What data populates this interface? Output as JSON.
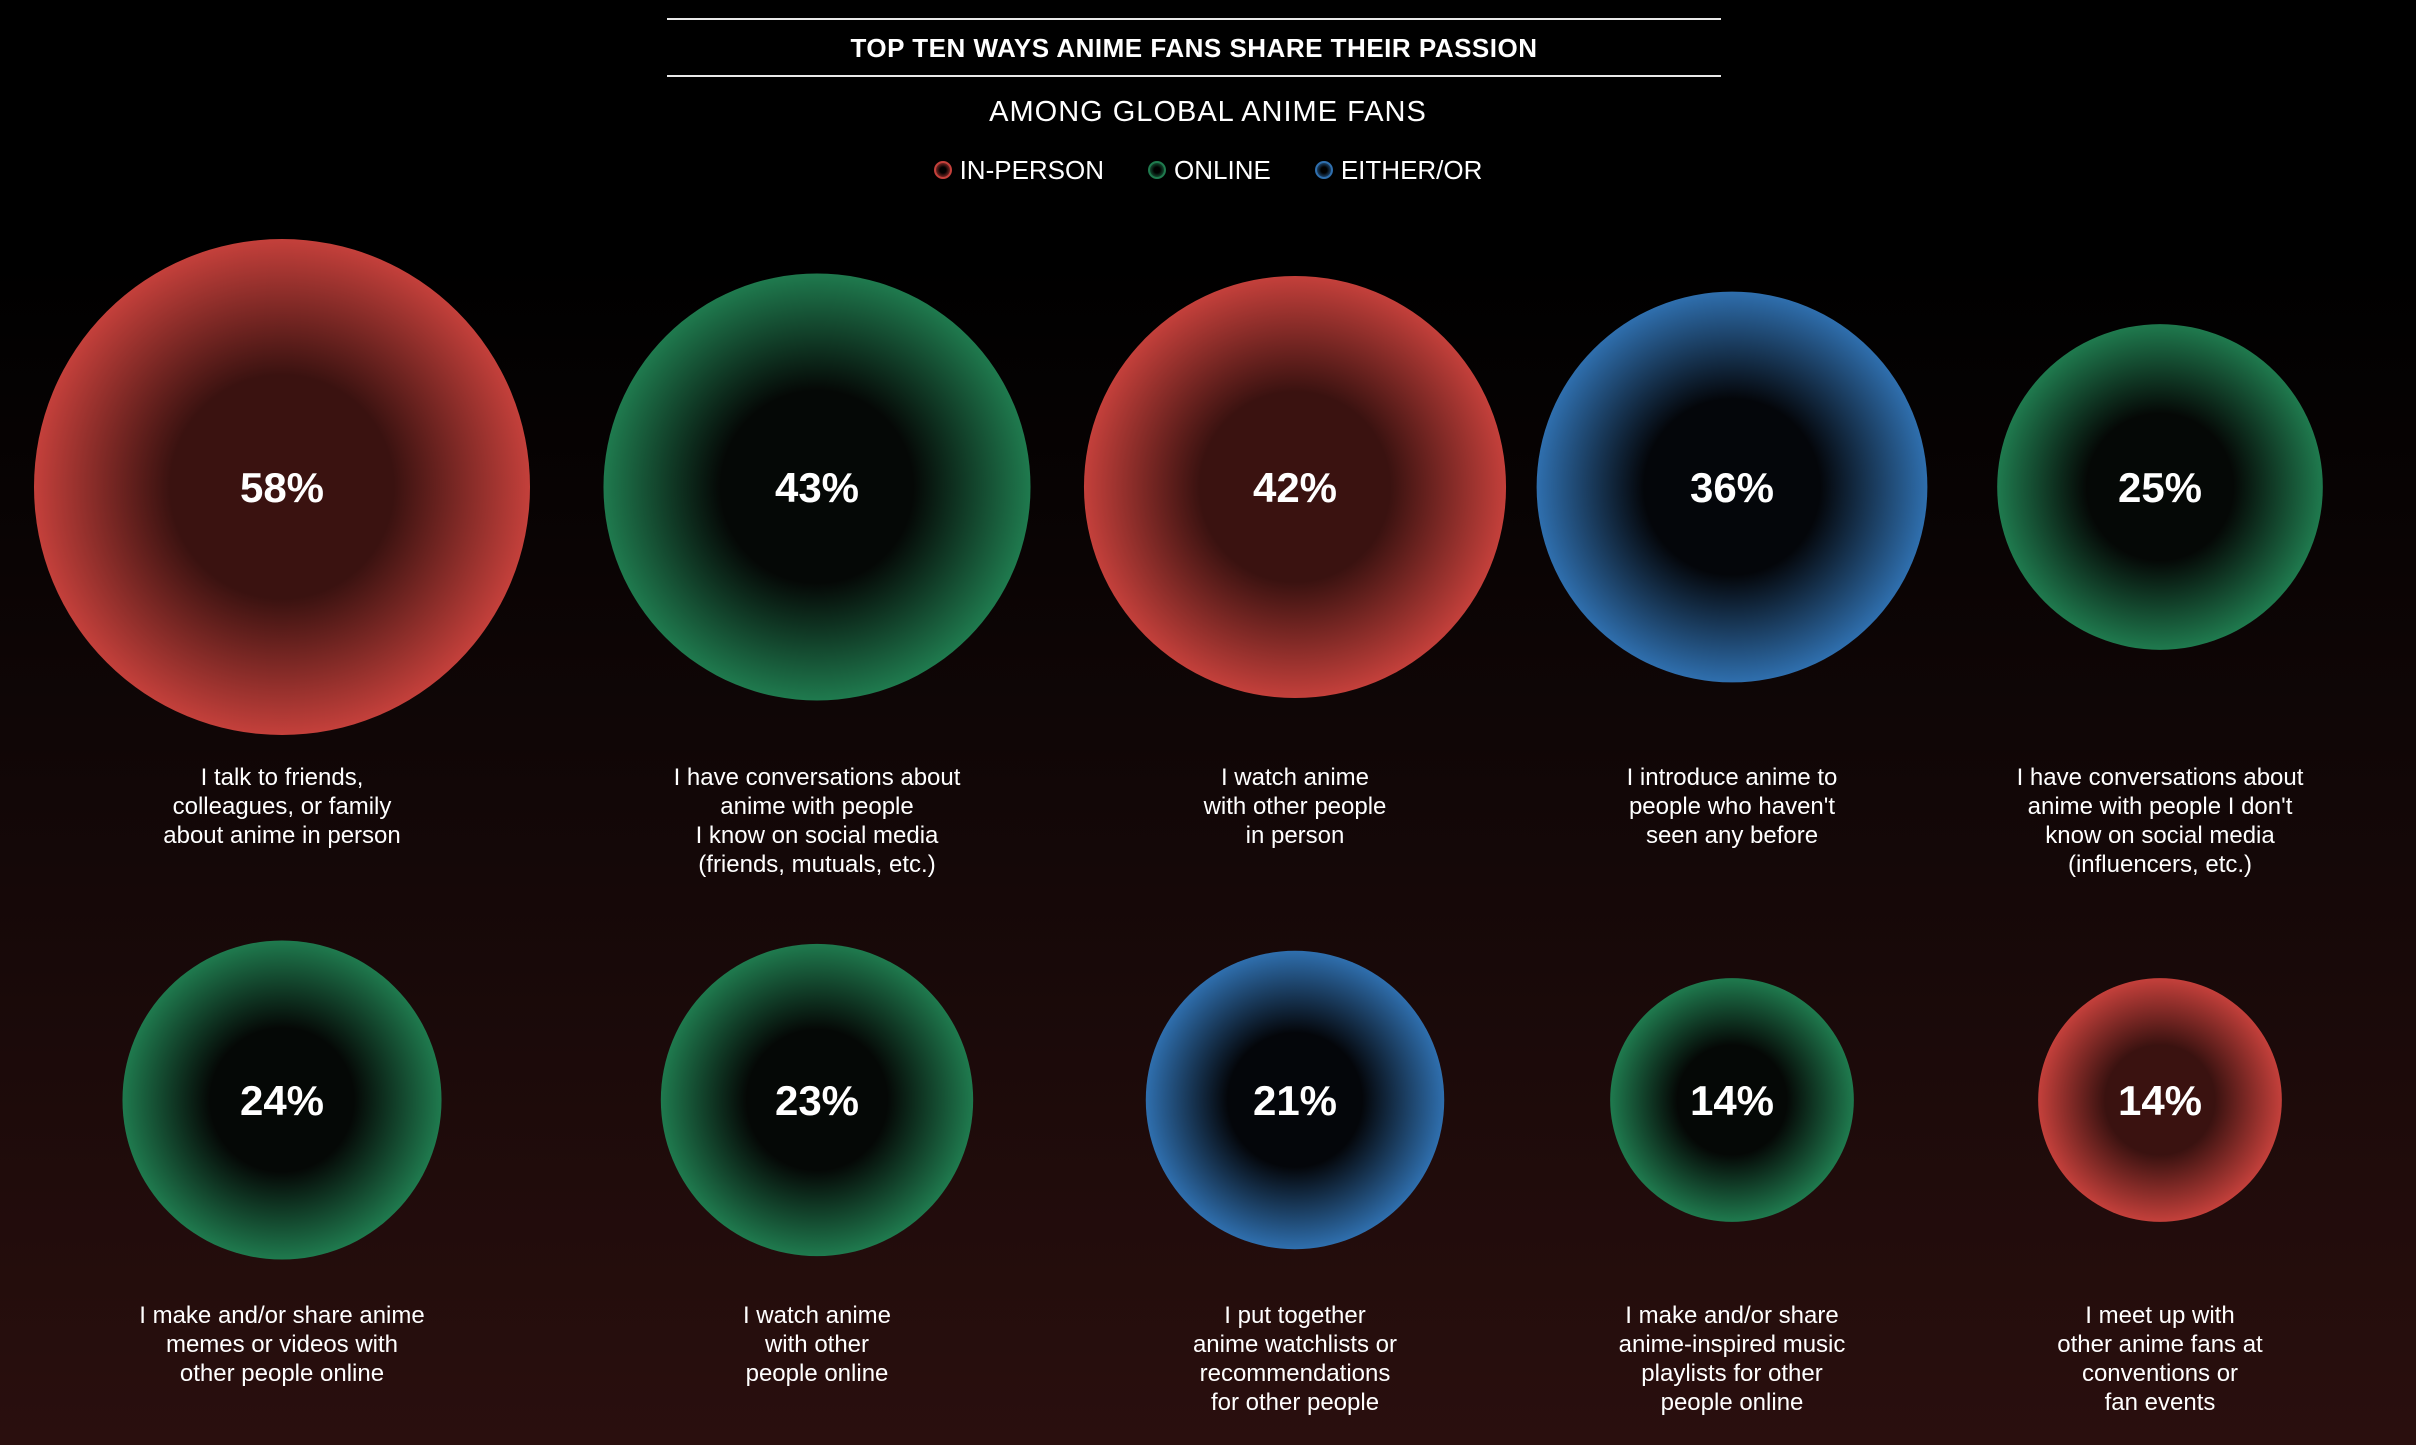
{
  "colors": {
    "in_person": "#c4403b",
    "online": "#1f7a4e",
    "either_or": "#2f6fae",
    "in_person_core": "#3a1210",
    "online_core": "#050806",
    "either_or_core": "#04060a"
  },
  "chart_data": {
    "type": "bubble",
    "title": "TOP TEN WAYS ANIME FANS SHARE THEIR PASSION",
    "subtitle": "AMONG GLOBAL ANIME FANS",
    "legend": [
      {
        "key": "in_person",
        "label": "IN-PERSON"
      },
      {
        "key": "online",
        "label": "ONLINE"
      },
      {
        "key": "either_or",
        "label": "EITHER/OR"
      }
    ],
    "items": [
      {
        "value": 58,
        "display": "58%",
        "category": "in_person",
        "label": [
          "I talk to friends,",
          "colleagues, or family",
          "about anime in person"
        ]
      },
      {
        "value": 43,
        "display": "43%",
        "category": "online",
        "label": [
          "I have conversations about",
          "anime with people",
          "I know on social media",
          "(friends, mutuals, etc.)"
        ]
      },
      {
        "value": 42,
        "display": "42%",
        "category": "in_person",
        "label": [
          "I watch anime",
          "with other people",
          "in person"
        ]
      },
      {
        "value": 36,
        "display": "36%",
        "category": "either_or",
        "label": [
          "I introduce anime to",
          "people who haven't",
          "seen any before"
        ]
      },
      {
        "value": 25,
        "display": "25%",
        "category": "online",
        "label": [
          "I have conversations about",
          "anime with people I don't",
          "know on social media",
          "(influencers, etc.)"
        ]
      },
      {
        "value": 24,
        "display": "24%",
        "category": "online",
        "label": [
          "I make and/or share anime",
          "memes or videos with",
          "other people online"
        ]
      },
      {
        "value": 23,
        "display": "23%",
        "category": "online",
        "label": [
          "I watch anime",
          "with other",
          "people online"
        ]
      },
      {
        "value": 21,
        "display": "21%",
        "category": "either_or",
        "label": [
          "I put together",
          "anime watchlists or",
          "recommendations",
          "for other people"
        ]
      },
      {
        "value": 14,
        "display": "14%",
        "category": "online",
        "label": [
          "I make and/or share",
          "anime-inspired music",
          "playlists for other",
          "people online"
        ]
      },
      {
        "value": 14,
        "display": "14%",
        "category": "in_person",
        "label": [
          "I meet up with",
          "other anime fans at",
          "conventions or",
          "fan events"
        ]
      }
    ]
  }
}
